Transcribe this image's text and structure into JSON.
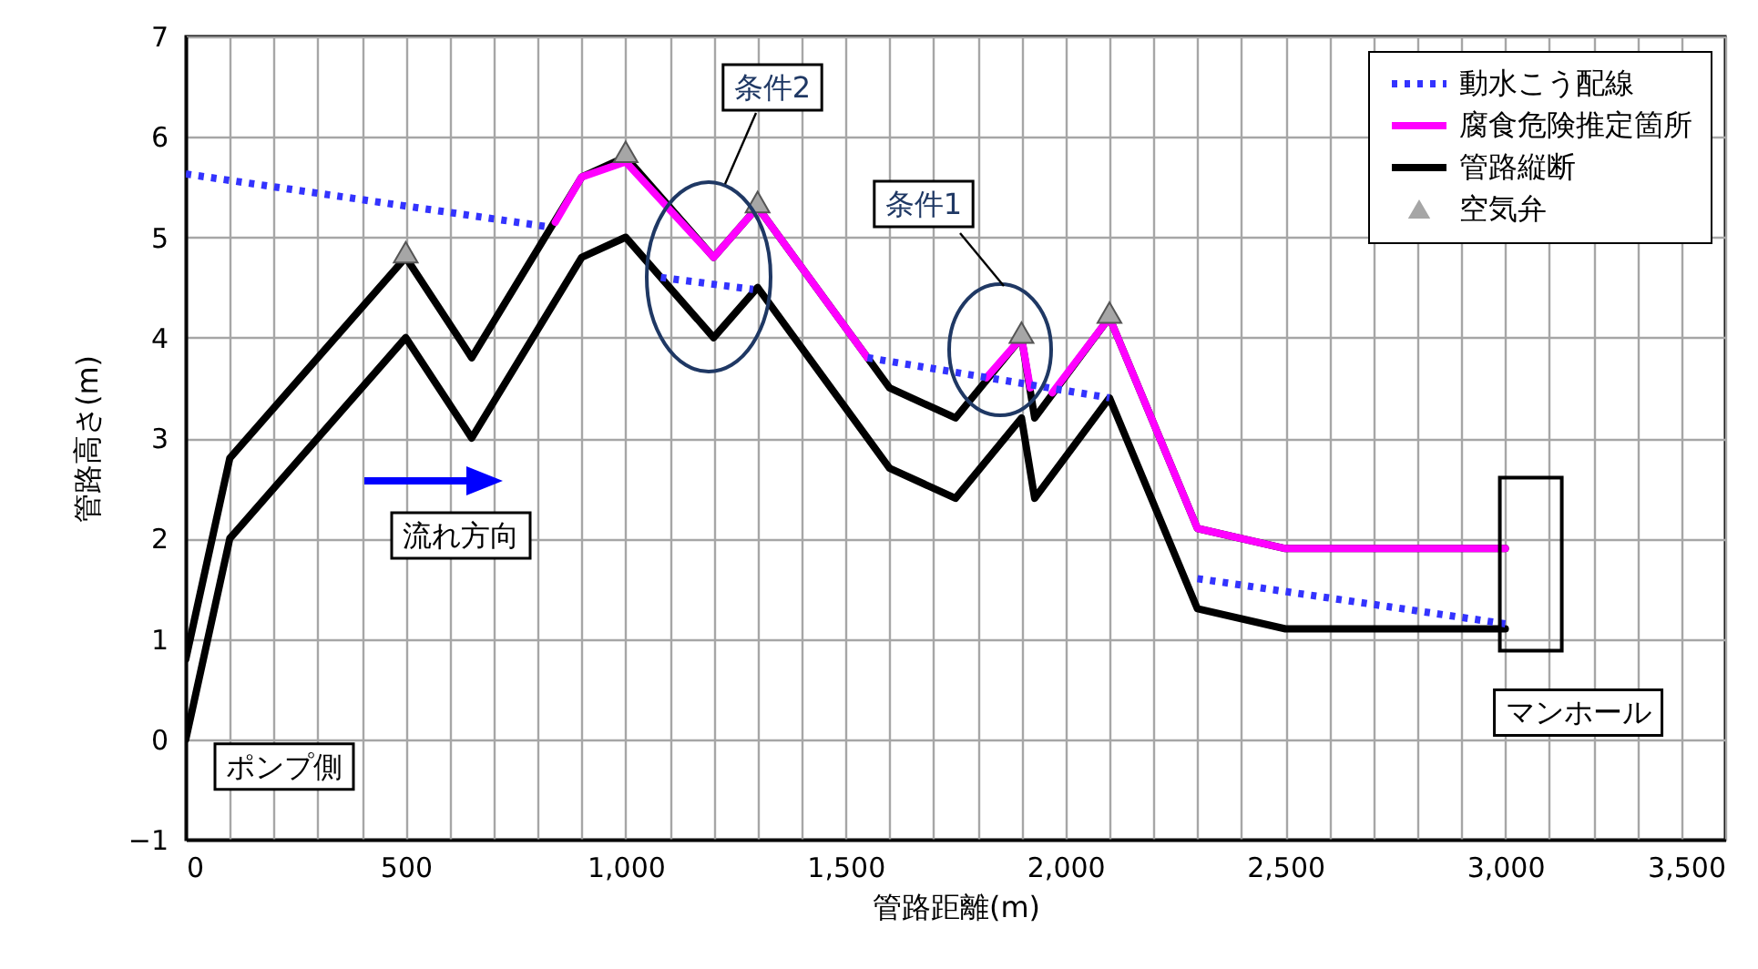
{
  "chart_data": {
    "type": "line",
    "xlabel": "管路距離(m)",
    "ylabel": "管路高さ(m)",
    "xlim": [
      0,
      3500
    ],
    "xticks": [
      {
        "value": 0,
        "label": "0"
      },
      {
        "value": 100,
        "label": null
      },
      {
        "value": 200,
        "label": null
      },
      {
        "value": 300,
        "label": null
      },
      {
        "value": 400,
        "label": null
      },
      {
        "value": 500,
        "label": "500"
      },
      {
        "value": 600,
        "label": null
      },
      {
        "value": 700,
        "label": null
      },
      {
        "value": 800,
        "label": null
      },
      {
        "value": 900,
        "label": null
      },
      {
        "value": 1000,
        "label": "1,000"
      },
      {
        "value": 1100,
        "label": null
      },
      {
        "value": 1200,
        "label": null
      },
      {
        "value": 1300,
        "label": null
      },
      {
        "value": 1400,
        "label": null
      },
      {
        "value": 1500,
        "label": "1,500"
      },
      {
        "value": 1600,
        "label": null
      },
      {
        "value": 1700,
        "label": null
      },
      {
        "value": 1800,
        "label": null
      },
      {
        "value": 1900,
        "label": null
      },
      {
        "value": 2000,
        "label": "2,000"
      },
      {
        "value": 2100,
        "label": null
      },
      {
        "value": 2200,
        "label": null
      },
      {
        "value": 2300,
        "label": null
      },
      {
        "value": 2400,
        "label": null
      },
      {
        "value": 2500,
        "label": "2,500"
      },
      {
        "value": 2600,
        "label": null
      },
      {
        "value": 2700,
        "label": null
      },
      {
        "value": 2800,
        "label": null
      },
      {
        "value": 2900,
        "label": null
      },
      {
        "value": 3000,
        "label": "3,000"
      },
      {
        "value": 3100,
        "label": null
      },
      {
        "value": 3200,
        "label": null
      },
      {
        "value": 3300,
        "label": null
      },
      {
        "value": 3400,
        "label": null
      },
      {
        "value": 3500,
        "label": "3,500"
      }
    ],
    "ylim": [
      -1,
      7
    ],
    "yticks": [
      -1,
      0,
      1,
      2,
      3,
      4,
      5,
      6,
      7
    ],
    "grid": true,
    "legend": "top right",
    "series": [
      {
        "name": "動水こう配線",
        "color": "#3333ff",
        "line_style": "dotted",
        "x": [
          0,
          830
        ],
        "values": [
          5.63,
          5.1
        ]
      },
      {
        "color": "#3333ff",
        "line_style": "dotted",
        "x": [
          1080,
          1290
        ],
        "values": [
          4.6,
          4.48
        ]
      },
      {
        "color": "#3333ff",
        "line_style": "dotted",
        "x": [
          1550,
          2100
        ],
        "values": [
          3.8,
          3.4
        ]
      },
      {
        "color": "#3333ff",
        "line_style": "dotted",
        "x": [
          2300,
          3000
        ],
        "values": [
          1.6,
          1.15
        ]
      },
      {
        "name": "腐食危険推定箇所",
        "color": "#ff00ff",
        "line_style": "solid",
        "x": [
          840,
          900,
          1000,
          1200,
          1300,
          1550
        ],
        "values": [
          5.15,
          5.6,
          5.75,
          4.8,
          5.3,
          3.8
        ]
      },
      {
        "color": "#ff00ff",
        "line_style": "solid",
        "x": [
          1820,
          1900,
          1920
        ],
        "values": [
          3.6,
          4.0,
          3.5
        ]
      },
      {
        "color": "#ff00ff",
        "line_style": "solid",
        "x": [
          1970,
          2100,
          2300,
          2500,
          3000
        ],
        "values": [
          3.45,
          4.2,
          2.1,
          1.9,
          1.9
        ]
      },
      {
        "name": "管路縦断",
        "color": "#000000",
        "line_style": "solid",
        "x": [
          0,
          100,
          500,
          650,
          900,
          1000,
          1200,
          1300,
          1600,
          1750,
          1900,
          1930,
          2100,
          2300,
          2500,
          3000
        ],
        "values": [
          0.8,
          2.8,
          4.8,
          3.8,
          5.6,
          5.8,
          4.8,
          5.3,
          3.5,
          3.2,
          4.0,
          3.2,
          4.2,
          2.1,
          1.9,
          1.9
        ]
      },
      {
        "color": "#000000",
        "line_style": "solid",
        "x": [
          0,
          100,
          500,
          650,
          900,
          1000,
          1200,
          1300,
          1600,
          1750,
          1900,
          1930,
          2100,
          2300,
          2500,
          3000
        ],
        "values": [
          0,
          2.0,
          4.0,
          3.0,
          4.8,
          5.0,
          4.0,
          4.5,
          2.7,
          2.4,
          3.2,
          2.4,
          3.4,
          1.3,
          1.1,
          1.1
        ]
      },
      {
        "name": "空気弁",
        "type": "scatter",
        "color": "#a6a6a6",
        "marker": "triangle",
        "x": [
          500,
          1000,
          1300,
          1900,
          2100
        ],
        "values": [
          4.85,
          5.85,
          5.35,
          4.05,
          4.25
        ]
      }
    ],
    "annotations": [
      "条件2",
      "条件1",
      "流れ方向",
      {
        "text": "ポンプ側",
        "x": 0,
        "y": 0
      },
      {
        "text": "マンホール",
        "x": 3000,
        "y": 1.1
      }
    ]
  }
}
